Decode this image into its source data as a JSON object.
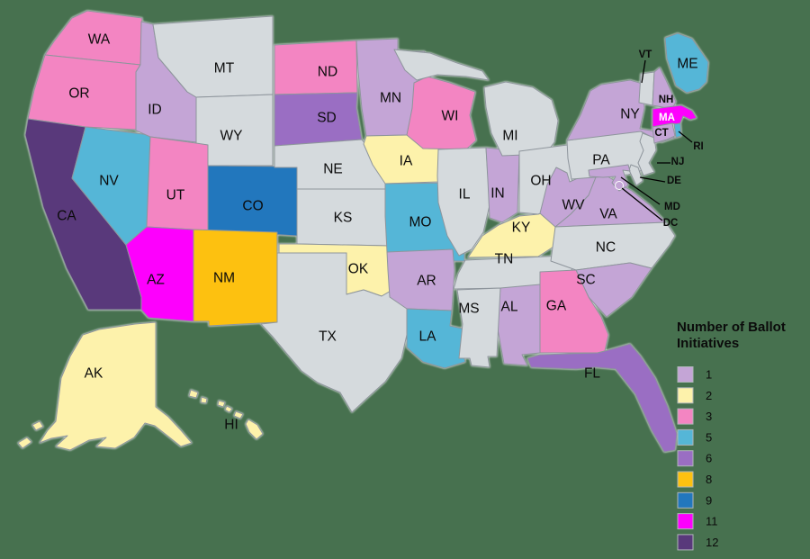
{
  "background_color": "#47714f",
  "legend": {
    "title": "Number of Ballot Initiatives"
  },
  "chart_data": {
    "type": "choropleth",
    "title": "Number of Ballot Initiatives",
    "region": "United States",
    "no_data_color": "#d5dadd",
    "state_border_color": "#8e959c",
    "legend_position": "bottom-right",
    "legend": [
      {
        "label": "1",
        "color": "#c4a5d6"
      },
      {
        "label": "2",
        "color": "#fdf2ab"
      },
      {
        "label": "3",
        "color": "#f385c2"
      },
      {
        "label": "5",
        "color": "#55b6d7"
      },
      {
        "label": "6",
        "color": "#9a6ec3"
      },
      {
        "label": "8",
        "color": "#fdc110"
      },
      {
        "label": "9",
        "color": "#2277bd"
      },
      {
        "label": "11",
        "color": "#fd00fd"
      },
      {
        "label": "12",
        "color": "#59397b"
      }
    ],
    "states": [
      {
        "abbr": "WA",
        "value": 3
      },
      {
        "abbr": "OR",
        "value": 3
      },
      {
        "abbr": "CA",
        "value": 12
      },
      {
        "abbr": "NV",
        "value": 5
      },
      {
        "abbr": "ID",
        "value": 1
      },
      {
        "abbr": "MT",
        "value": null
      },
      {
        "abbr": "WY",
        "value": null
      },
      {
        "abbr": "UT",
        "value": 3
      },
      {
        "abbr": "CO",
        "value": 9
      },
      {
        "abbr": "AZ",
        "value": 11
      },
      {
        "abbr": "NM",
        "value": 8
      },
      {
        "abbr": "ND",
        "value": 3
      },
      {
        "abbr": "SD",
        "value": 6
      },
      {
        "abbr": "NE",
        "value": null
      },
      {
        "abbr": "KS",
        "value": null
      },
      {
        "abbr": "OK",
        "value": 2
      },
      {
        "abbr": "TX",
        "value": null
      },
      {
        "abbr": "MN",
        "value": 1
      },
      {
        "abbr": "IA",
        "value": 2
      },
      {
        "abbr": "MO",
        "value": 5
      },
      {
        "abbr": "AR",
        "value": 1
      },
      {
        "abbr": "LA",
        "value": 5
      },
      {
        "abbr": "WI",
        "value": 3
      },
      {
        "abbr": "IL",
        "value": null
      },
      {
        "abbr": "IN",
        "value": 1
      },
      {
        "abbr": "MI",
        "value": null
      },
      {
        "abbr": "OH",
        "value": null
      },
      {
        "abbr": "KY",
        "value": 2
      },
      {
        "abbr": "TN",
        "value": null
      },
      {
        "abbr": "WV",
        "value": 1
      },
      {
        "abbr": "VA",
        "value": 1
      },
      {
        "abbr": "NC",
        "value": null
      },
      {
        "abbr": "SC",
        "value": 1
      },
      {
        "abbr": "GA",
        "value": 3
      },
      {
        "abbr": "AL",
        "value": 1
      },
      {
        "abbr": "MS",
        "value": null
      },
      {
        "abbr": "FL",
        "value": 6
      },
      {
        "abbr": "PA",
        "value": null
      },
      {
        "abbr": "NY",
        "value": 1
      },
      {
        "abbr": "NJ",
        "value": null
      },
      {
        "abbr": "DE",
        "value": null
      },
      {
        "abbr": "MD",
        "value": 1
      },
      {
        "abbr": "VT",
        "value": null
      },
      {
        "abbr": "NH",
        "value": 1
      },
      {
        "abbr": "ME",
        "value": 5
      },
      {
        "abbr": "MA",
        "value": 11
      },
      {
        "abbr": "CT",
        "value": 1
      },
      {
        "abbr": "RI",
        "value": 5
      },
      {
        "abbr": "DC",
        "value": 1
      },
      {
        "abbr": "AK",
        "value": 2
      },
      {
        "abbr": "HI",
        "value": 2
      }
    ]
  }
}
